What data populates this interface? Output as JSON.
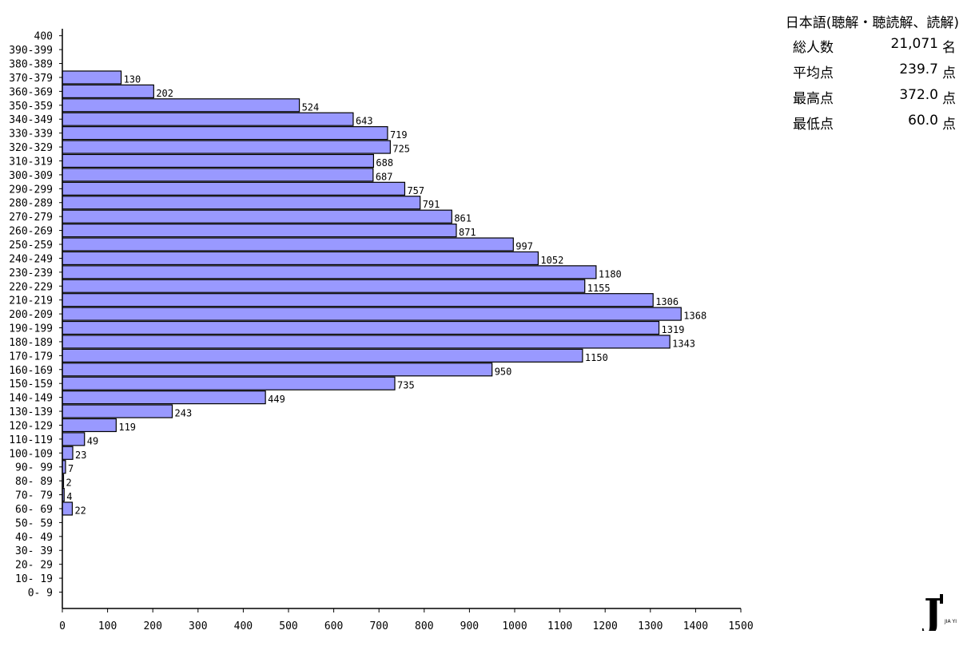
{
  "chart_data": {
    "type": "bar",
    "orientation": "horizontal",
    "categories": [
      "400",
      "390-399",
      "380-389",
      "370-379",
      "360-369",
      "350-359",
      "340-349",
      "330-339",
      "320-329",
      "310-319",
      "300-309",
      "290-299",
      "280-289",
      "270-279",
      "260-269",
      "250-259",
      "240-249",
      "230-239",
      "220-229",
      "210-219",
      "200-209",
      "190-199",
      "180-189",
      "170-179",
      "160-169",
      "150-159",
      "140-149",
      "130-139",
      "120-129",
      "110-119",
      "100-109",
      "90- 99",
      "80- 89",
      "70- 79",
      "60- 69",
      "50- 59",
      "40- 49",
      "30- 39",
      "20- 29",
      "10- 19",
      "0- 9"
    ],
    "values": [
      0,
      0,
      0,
      130,
      202,
      524,
      643,
      719,
      725,
      688,
      687,
      757,
      791,
      861,
      871,
      997,
      1052,
      1180,
      1155,
      1306,
      1368,
      1319,
      1343,
      1150,
      950,
      735,
      449,
      243,
      119,
      49,
      23,
      7,
      2,
      4,
      22,
      0,
      0,
      0,
      0,
      0,
      0
    ],
    "xlim": [
      0,
      1500
    ],
    "xticks": [
      0,
      100,
      200,
      300,
      400,
      500,
      600,
      700,
      800,
      900,
      1000,
      1100,
      1200,
      1300,
      1400,
      1500
    ],
    "data_labels": true,
    "grid": false,
    "bar_color": "#9999ff",
    "bar_edge_color": "#000000",
    "title": "",
    "xlabel": "",
    "ylabel": ""
  },
  "stats": {
    "title": "日本語(聴解・聴読解、読解)",
    "rows": [
      {
        "label": "総人数",
        "value": "21,071",
        "unit": "名"
      },
      {
        "label": "平均点",
        "value": "239.7",
        "unit": "点"
      },
      {
        "label": "最高点",
        "value": "372.0",
        "unit": "点"
      },
      {
        "label": "最低点",
        "value": "60.0",
        "unit": "点"
      }
    ]
  },
  "logo": {
    "mark": "J",
    "subtext": "JIA YI"
  }
}
